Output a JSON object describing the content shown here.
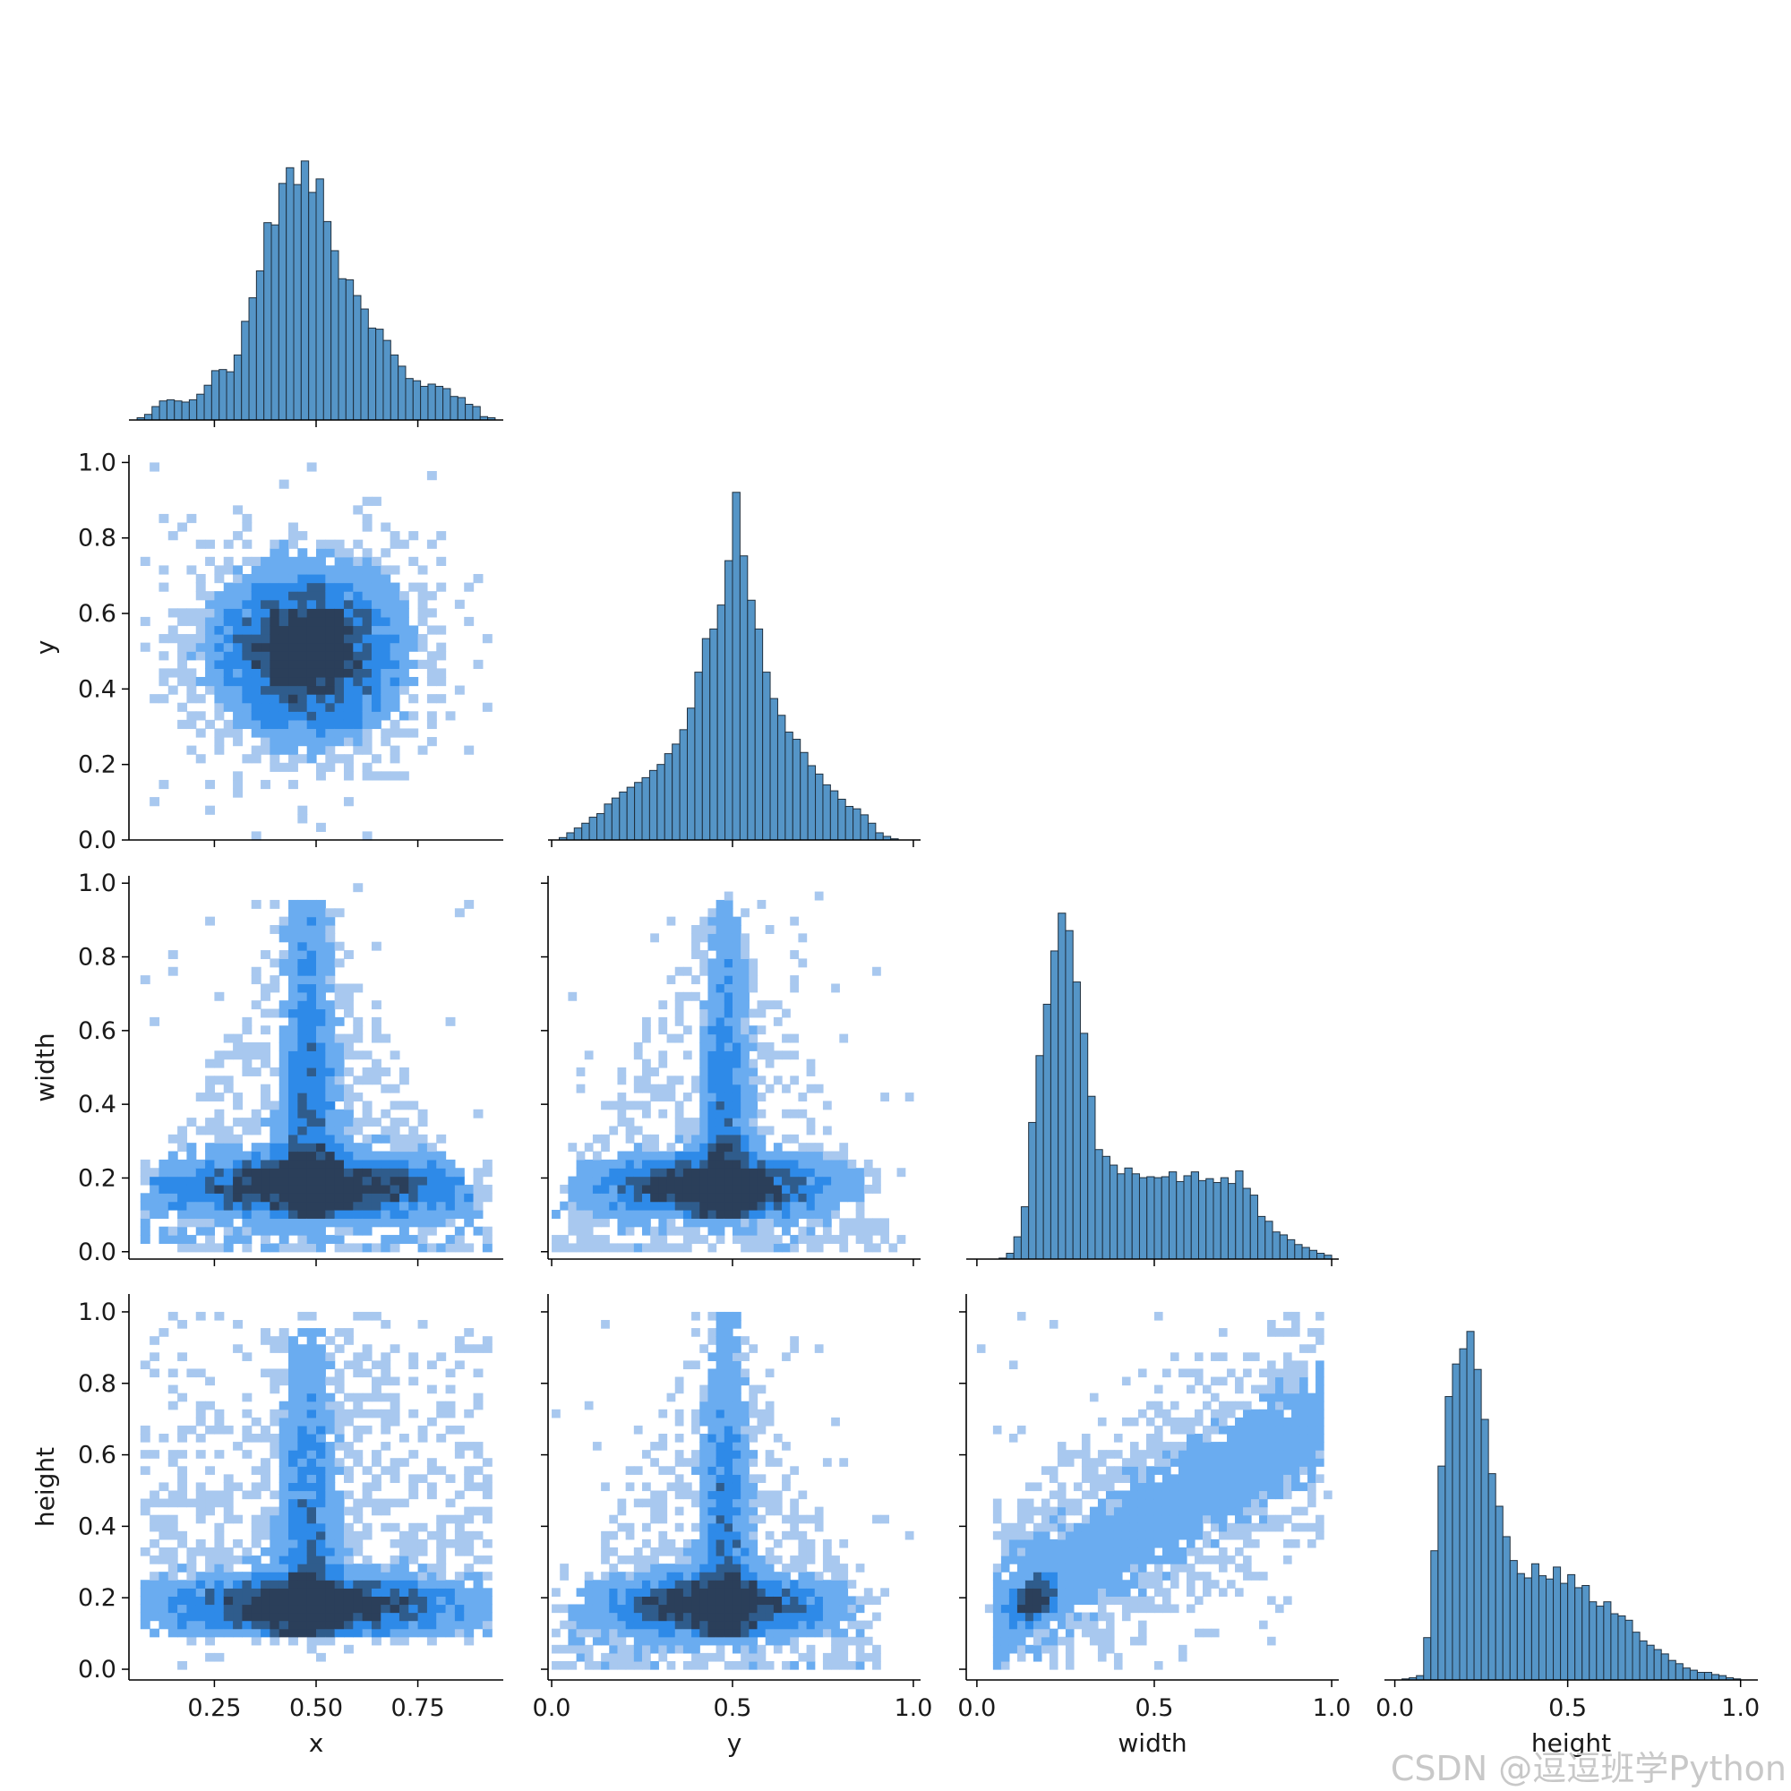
{
  "figure": {
    "watermark": "CSDN @逗逗班学Python"
  },
  "chart_data": {
    "type": "pairplot",
    "variables": [
      "x",
      "y",
      "width",
      "height"
    ],
    "layout": "lower-triangle (corner)",
    "diagonal": "histogram",
    "off_diagonal": "2d-histogram",
    "color": "#1f77b4",
    "bar_color": "#4c8fc4",
    "heat_colors": [
      "#a8c8ef",
      "#6aacf0",
      "#2e8ae8",
      "#2f5c8c",
      "#2b3f5a"
    ],
    "axes": {
      "x": {
        "xlim": [
          0.04,
          0.96
        ],
        "ticks": [
          0.25,
          0.5,
          0.75
        ],
        "tick_labels": [
          "0.25",
          "0.50",
          "0.75"
        ],
        "label": "x"
      },
      "y": {
        "xlim": [
          -0.01,
          1.02
        ],
        "ticks": [
          0.0,
          0.5,
          1.0
        ],
        "tick_labels": [
          "0.0",
          "0.5",
          "1.0"
        ],
        "label": "y"
      },
      "width": {
        "xlim": [
          -0.03,
          1.02
        ],
        "ticks": [
          0.0,
          0.5,
          1.0
        ],
        "tick_labels": [
          "0.0",
          "0.5",
          "1.0"
        ],
        "label": "width"
      },
      "height": {
        "xlim": [
          -0.03,
          1.05
        ],
        "ticks": [
          0.0,
          0.5,
          1.0
        ],
        "tick_labels": [
          "0.0",
          "0.5",
          "1.0"
        ],
        "label": "height"
      }
    },
    "row_axes": {
      "y": {
        "ylim": [
          0.0,
          1.02
        ],
        "ticks": [
          0.0,
          0.2,
          0.4,
          0.6,
          0.8,
          1.0
        ],
        "tick_labels": [
          "0.0",
          "0.2",
          "0.4",
          "0.6",
          "0.8",
          "1.0"
        ],
        "label": "y"
      },
      "width": {
        "ylim": [
          -0.02,
          1.02
        ],
        "ticks": [
          0.0,
          0.2,
          0.4,
          0.6,
          0.8,
          1.0
        ],
        "tick_labels": [
          "0.0",
          "0.2",
          "0.4",
          "0.6",
          "0.8",
          "1.0"
        ],
        "label": "width"
      },
      "height": {
        "ylim": [
          -0.03,
          1.05
        ],
        "ticks": [
          0.0,
          0.2,
          0.4,
          0.6,
          0.8,
          1.0
        ],
        "tick_labels": [
          "0.0",
          "0.2",
          "0.4",
          "0.6",
          "0.8",
          "1.0"
        ],
        "label": "height"
      }
    },
    "histograms": {
      "x": {
        "range": [
          0.06,
          0.94
        ],
        "counts": [
          2,
          5,
          12,
          17,
          18,
          17,
          16,
          18,
          23,
          31,
          44,
          45,
          43,
          58,
          88,
          109,
          133,
          176,
          174,
          211,
          225,
          210,
          231,
          203,
          215,
          177,
          151,
          126,
          125,
          111,
          99,
          82,
          81,
          71,
          58,
          48,
          37,
          35,
          30,
          32,
          30,
          28,
          21,
          20,
          14,
          12,
          3,
          2
        ]
      },
      "y": {
        "range": [
          0.0,
          1.0
        ],
        "counts": [
          0,
          2,
          6,
          10,
          14,
          19,
          22,
          30,
          35,
          40,
          44,
          48,
          52,
          58,
          63,
          72,
          80,
          92,
          110,
          140,
          168,
          176,
          196,
          233,
          290,
          237,
          200,
          176,
          140,
          118,
          104,
          90,
          84,
          73,
          62,
          55,
          46,
          41,
          34,
          28,
          26,
          21,
          14,
          6,
          3,
          1,
          0,
          0
        ]
      },
      "width": {
        "range": [
          0.0,
          1.0
        ],
        "counts": [
          0,
          0,
          0,
          1,
          6,
          23,
          54,
          141,
          210,
          263,
          318,
          357,
          339,
          286,
          233,
          168,
          113,
          106,
          97,
          88,
          94,
          88,
          84,
          85,
          84,
          85,
          90,
          80,
          86,
          90,
          81,
          83,
          79,
          84,
          78,
          91,
          73,
          66,
          44,
          39,
          28,
          25,
          20,
          15,
          12,
          9,
          6,
          4
        ]
      },
      "height": {
        "range": [
          0.0,
          1.0
        ],
        "counts": [
          0,
          1,
          2,
          4,
          39,
          119,
          197,
          261,
          291,
          305,
          321,
          286,
          240,
          190,
          160,
          132,
          110,
          98,
          94,
          107,
          96,
          93,
          104,
          89,
          97,
          85,
          87,
          72,
          68,
          72,
          61,
          59,
          55,
          44,
          36,
          32,
          28,
          24,
          18,
          15,
          11,
          9,
          7,
          7,
          5,
          4,
          2,
          1
        ]
      }
    },
    "pairs": [
      {
        "x": "x",
        "y": "y",
        "pattern": "single central cluster near (0.48, 0.50) with broad uniform scatter"
      },
      {
        "x": "x",
        "y": "width",
        "pattern": "triangular spread; dense band at width ~0.18, vertical ridge near x 0.48"
      },
      {
        "x": "y",
        "y": "width",
        "pattern": "triangular spread; dense band at width ~0.18, vertical ridge near y 0.48"
      },
      {
        "x": "x",
        "y": "height",
        "pattern": "dense band at height ~0.18 with vertical ridge near x 0.48"
      },
      {
        "x": "y",
        "y": "height",
        "pattern": "triangular spread narrowing upward; dense band at height ~0.18"
      },
      {
        "x": "width",
        "y": "height",
        "pattern": "positive correlation; dense cluster near (0.17, 0.20) spreading toward (0.8, 0.6)"
      }
    ]
  }
}
